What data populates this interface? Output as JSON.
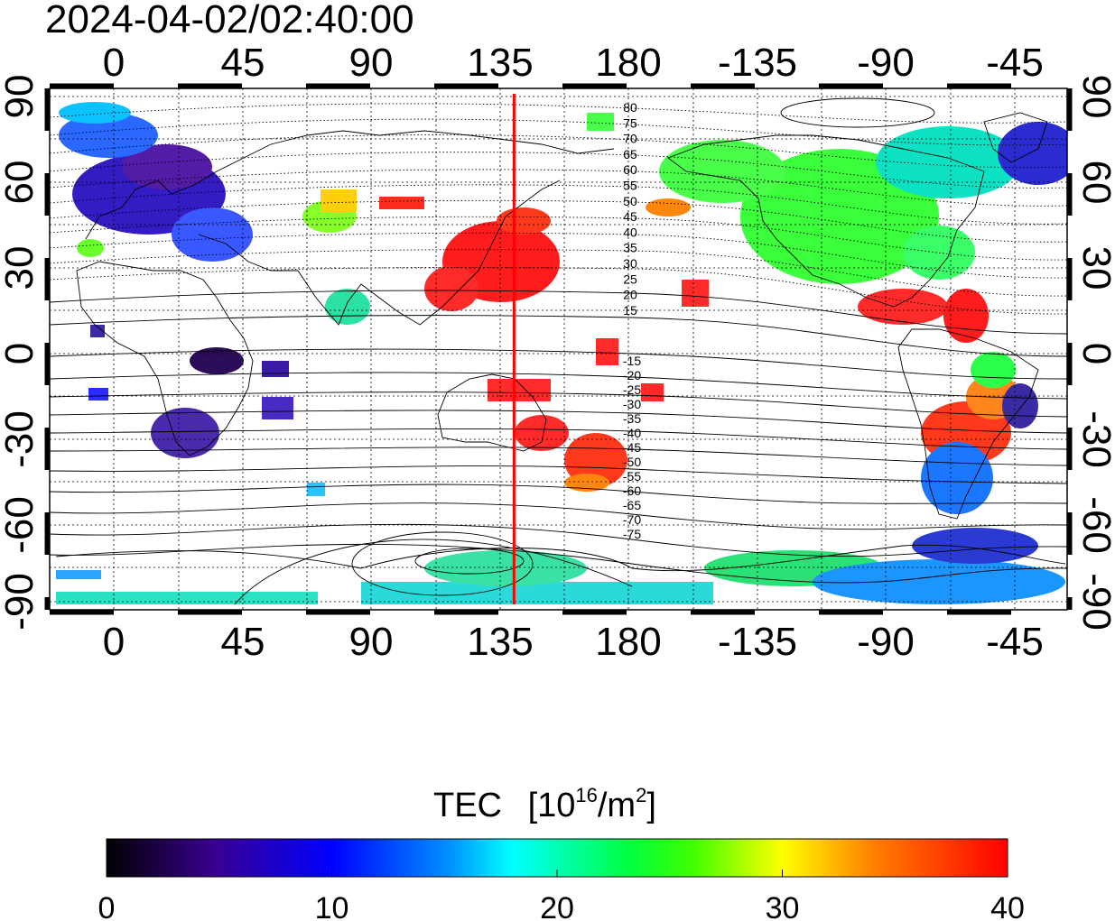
{
  "title": "2024-04-02/02:40:00",
  "lon_ticks": [
    "0",
    "45",
    "90",
    "135",
    "180",
    "-135",
    "-90",
    "-45"
  ],
  "lat_ticks_left": [
    "90",
    "60",
    "30",
    "0",
    "-30",
    "-60",
    "-90"
  ],
  "lat_ticks_right": [
    "90",
    "60",
    "30",
    "0",
    "-30",
    "-60",
    "-90"
  ],
  "contour_labels_north": [
    "80",
    "75",
    "70",
    "65",
    "60",
    "55",
    "50",
    "45",
    "40",
    "35",
    "30",
    "25",
    "20",
    "15"
  ],
  "contour_labels_south": [
    "-15",
    "-20",
    "-25",
    "-30",
    "-35",
    "-40",
    "-45",
    "-50",
    "-55",
    "-60",
    "-65",
    "-70",
    "-75"
  ],
  "marker_longitude": 140,
  "colors": {
    "marker": "#ff0000",
    "grid": "#000000",
    "colorbar_stops": [
      "#000000",
      "#4000a0",
      "#0000ff",
      "#00e0ff",
      "#00ff00",
      "#ffff00",
      "#ff8000",
      "#ff0000"
    ]
  },
  "colorbar": {
    "title": "TEC",
    "unit_prefix": "[10",
    "unit_exp": "16",
    "unit_mid": "/m",
    "unit_exp2": "2",
    "unit_suffix": "]",
    "min": 0,
    "max": 40,
    "ticks": [
      "0",
      "10",
      "20",
      "30",
      "40"
    ]
  }
}
